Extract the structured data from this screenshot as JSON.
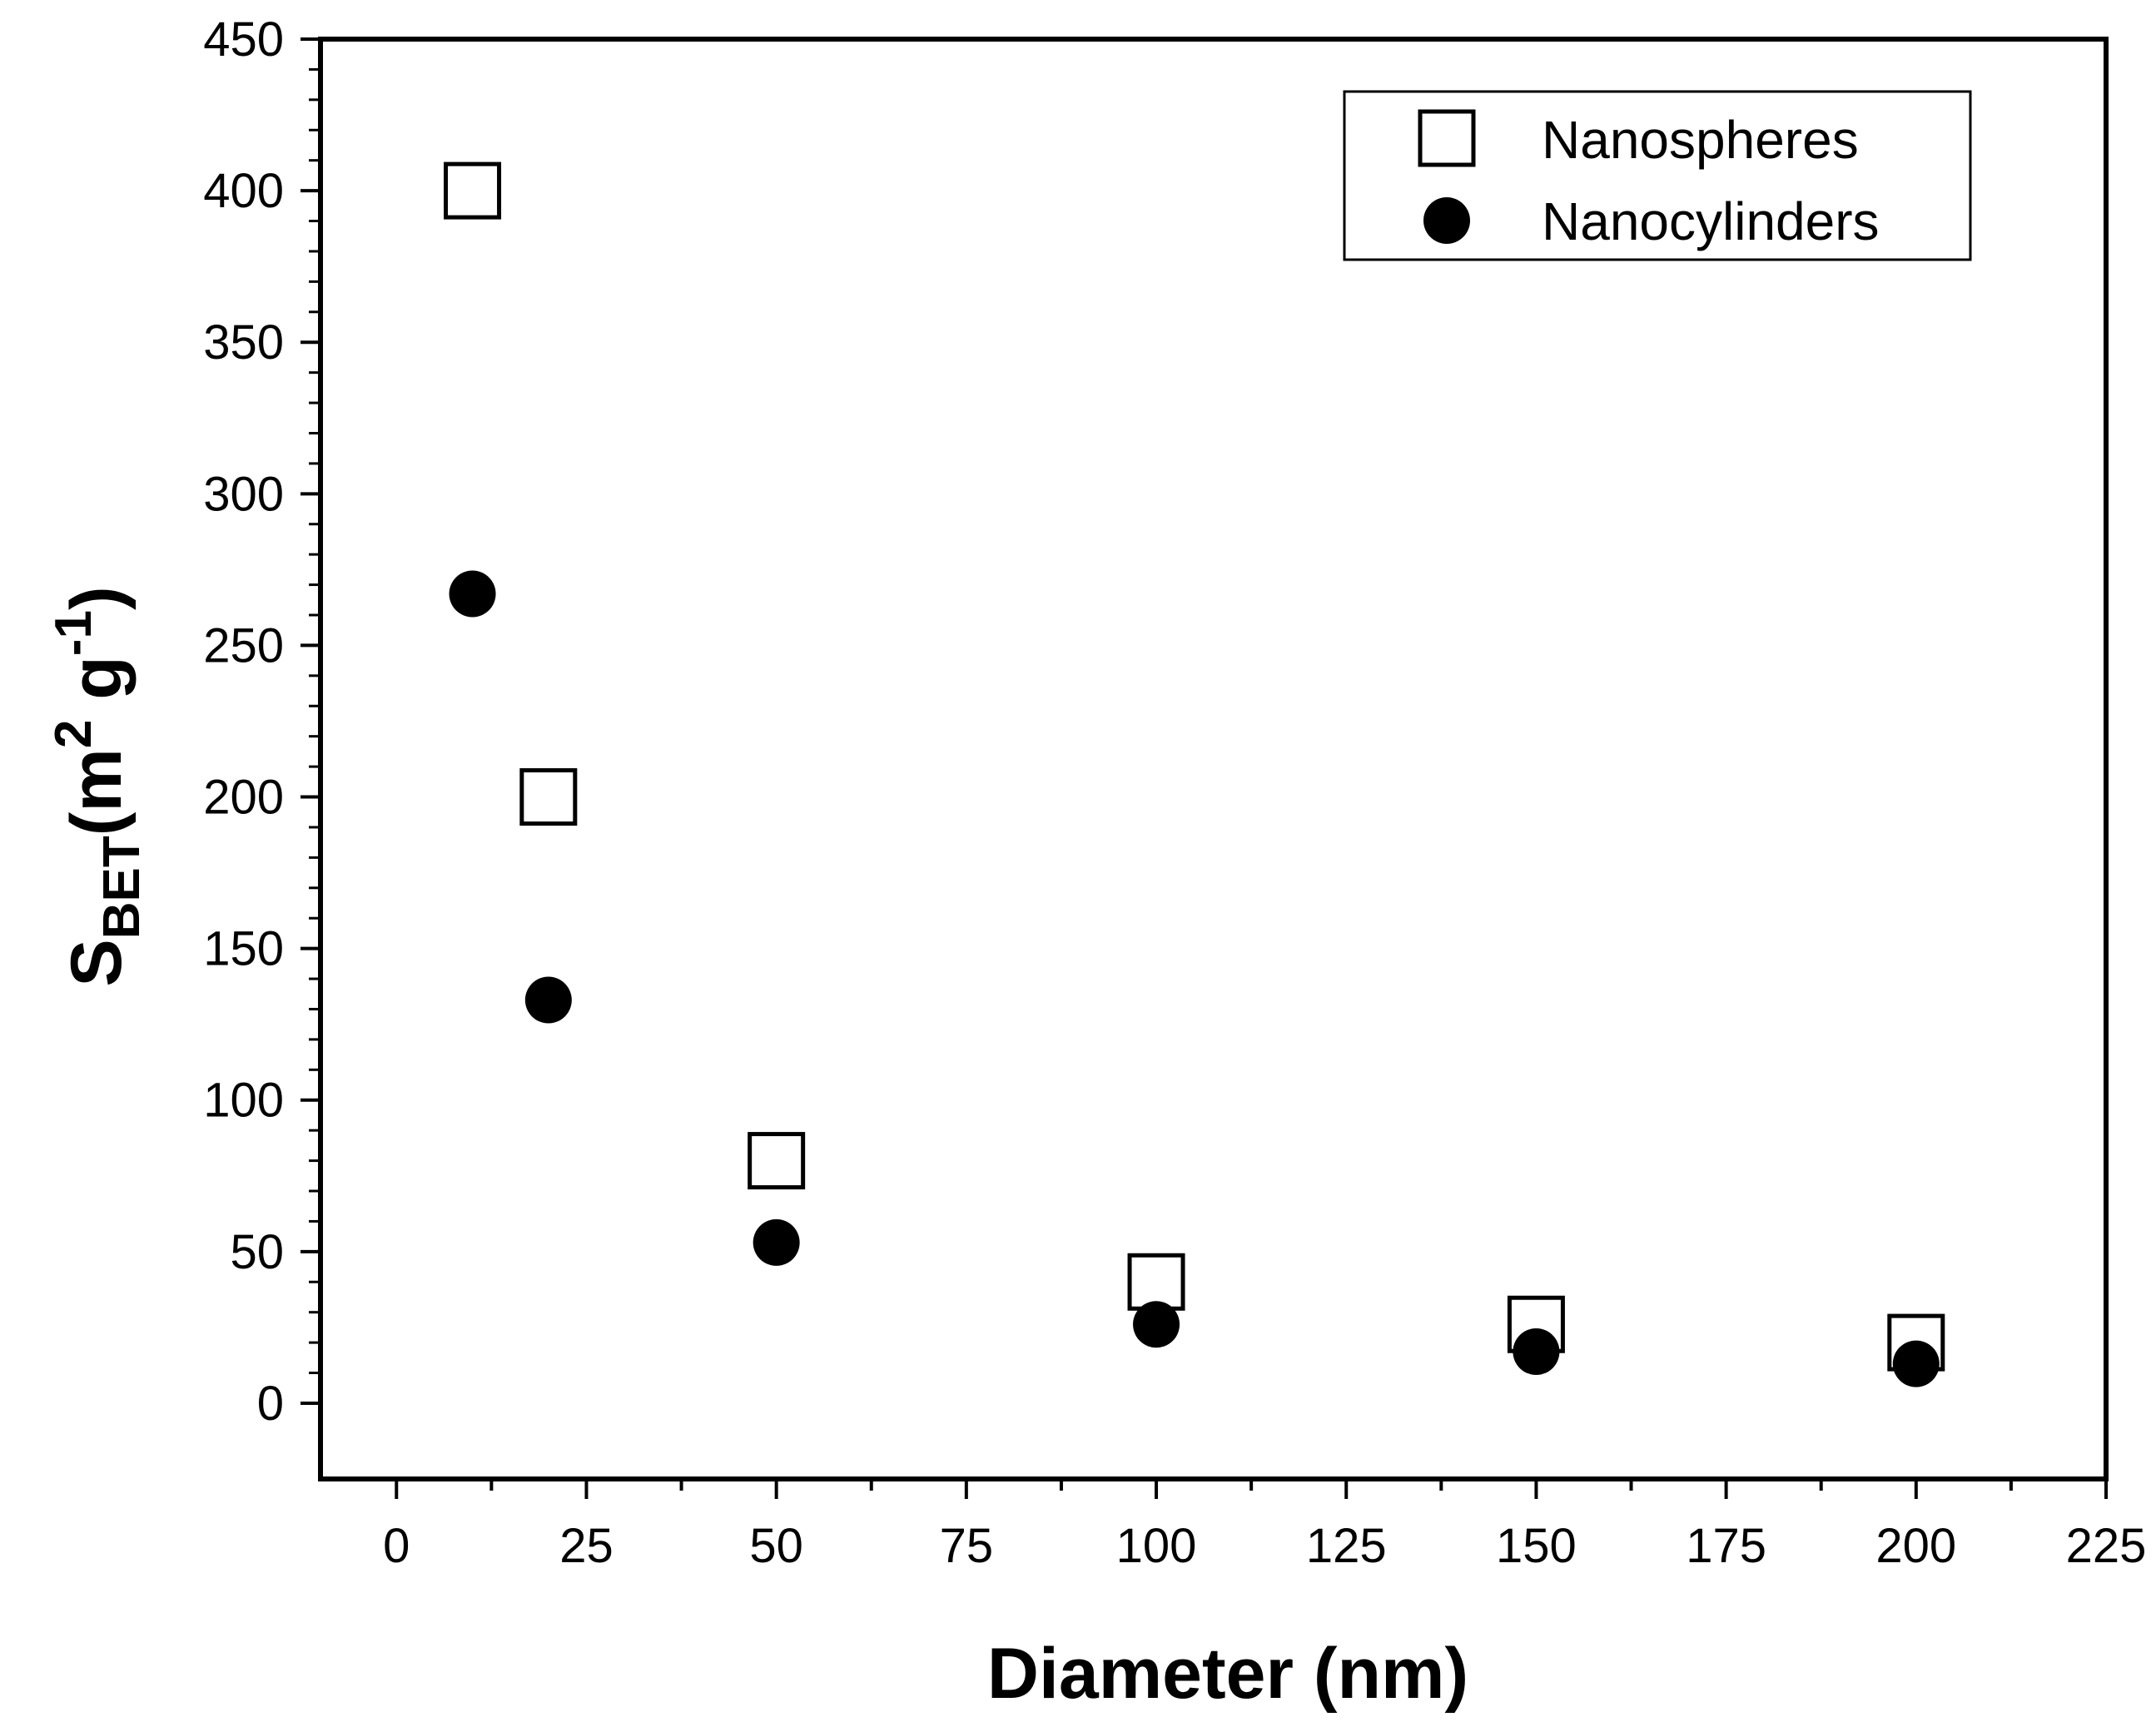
{
  "chart_data": {
    "type": "scatter",
    "title": "",
    "xlabel": "Diameter (nm)",
    "ylabel": {
      "base": "S",
      "sub": "BET",
      "unit_open": "(m",
      "sup1": "2",
      "unit_mid": " g",
      "sup2": "-1",
      "unit_close": ")"
    },
    "xlim": [
      -10,
      225
    ],
    "ylim": [
      -25,
      450
    ],
    "x_ticks": [
      0,
      25,
      50,
      75,
      100,
      125,
      150,
      175,
      200,
      225
    ],
    "x_tick_labels": [
      "0",
      "25",
      "50",
      "75",
      "100",
      "125",
      "150",
      "175",
      "200",
      "225"
    ],
    "y_ticks": [
      0,
      50,
      100,
      150,
      200,
      250,
      300,
      350,
      400,
      450
    ],
    "y_tick_labels": [
      "0",
      "50",
      "100",
      "150",
      "200",
      "250",
      "300",
      "350",
      "400",
      "450"
    ],
    "legend_position": "top-right",
    "grid": false,
    "series": [
      {
        "name": "Nanospheres",
        "marker": "open-square",
        "x": [
          10,
          20,
          50,
          100,
          150,
          200
        ],
        "values": [
          400,
          200,
          80,
          40,
          26,
          20
        ]
      },
      {
        "name": "Nanocylinders",
        "marker": "filled-circle",
        "x": [
          10,
          20,
          50,
          100,
          150,
          200
        ],
        "values": [
          267,
          133,
          53,
          26,
          17,
          13
        ]
      }
    ],
    "colors": {
      "axis": "#000000",
      "marker": "#000000",
      "background": "#ffffff"
    }
  }
}
